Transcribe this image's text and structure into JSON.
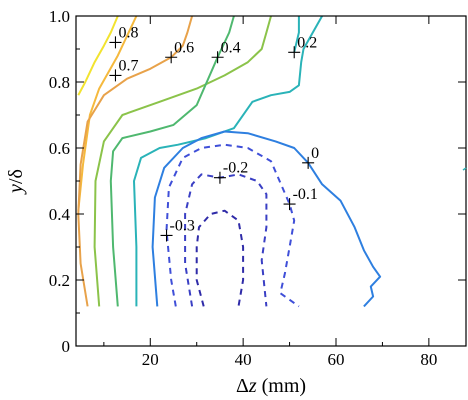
{
  "chart_data": {
    "type": "contour",
    "xlabel_prefix": "Δ",
    "xlabel_var": "z",
    "xlabel_unit": " (mm)",
    "ylabel_var": "y",
    "ylabel_rest": "/δ",
    "xlim": [
      4,
      88
    ],
    "ylim": [
      0,
      1.0
    ],
    "xticks": [
      20,
      40,
      60,
      80
    ],
    "yticks": [
      0,
      0.2,
      0.4,
      0.6,
      0.8,
      1.0
    ],
    "ytick_labels": [
      "0",
      "0.2",
      "0.4",
      "0.6",
      "0.8",
      "1.0"
    ],
    "grid": false,
    "levels": [
      {
        "value": 0.8,
        "label": "0.8",
        "color": "#f2e32f",
        "dashed": false,
        "label_at": [
          12.5,
          0.92
        ],
        "points": [
          [
            4.5,
            0.76
          ],
          [
            6,
            0.8
          ],
          [
            8,
            0.86
          ],
          [
            10,
            0.91
          ],
          [
            11.5,
            0.95
          ],
          [
            13,
            1.0
          ]
        ]
      },
      {
        "value": 0.7,
        "label": "0.7",
        "color": "#f5b93d",
        "dashed": false,
        "label_at": [
          12.5,
          0.82
        ],
        "points": [
          [
            4.5,
            0.41
          ],
          [
            5.5,
            0.55
          ],
          [
            7,
            0.7
          ],
          [
            9,
            0.78
          ],
          [
            11,
            0.83
          ],
          [
            13,
            0.88
          ],
          [
            15,
            0.94
          ],
          [
            17,
            1.0
          ]
        ]
      },
      {
        "value": 0.6,
        "label": "0.6",
        "color": "#e8a24a",
        "dashed": false,
        "label_at": [
          24.5,
          0.875
        ],
        "points": [
          [
            6.5,
            0.12
          ],
          [
            5,
            0.25
          ],
          [
            4.5,
            0.4
          ],
          [
            5,
            0.55
          ],
          [
            6.5,
            0.68
          ],
          [
            10,
            0.76
          ],
          [
            15,
            0.81
          ],
          [
            20,
            0.84
          ],
          [
            24.5,
            0.875
          ],
          [
            27,
            0.91
          ],
          [
            28,
            0.95
          ],
          [
            29,
            1.0
          ]
        ]
      },
      {
        "value": 0.5,
        "label": "",
        "color": "#8bc34a",
        "dashed": false,
        "label_at": null,
        "points": [
          [
            9,
            0.12
          ],
          [
            8,
            0.3
          ],
          [
            8.2,
            0.5
          ],
          [
            10,
            0.62
          ],
          [
            14,
            0.7
          ],
          [
            22,
            0.74
          ],
          [
            30,
            0.78
          ],
          [
            36,
            0.82
          ],
          [
            41,
            0.86
          ],
          [
            44,
            0.9
          ],
          [
            45,
            0.95
          ],
          [
            46,
            1.0
          ]
        ]
      },
      {
        "value": 0.4,
        "label": "0.4",
        "color": "#4fb86f",
        "dashed": false,
        "label_at": [
          34.5,
          0.875
        ],
        "points": [
          [
            13,
            0.12
          ],
          [
            12,
            0.3
          ],
          [
            11.5,
            0.5
          ],
          [
            12,
            0.59
          ],
          [
            14,
            0.63
          ],
          [
            20,
            0.65
          ],
          [
            25,
            0.67
          ],
          [
            30,
            0.73
          ],
          [
            34.5,
            0.875
          ],
          [
            37,
            0.95
          ],
          [
            38,
            1.0
          ]
        ]
      },
      {
        "value": 0.3,
        "label": "",
        "color": "#2ab3b8",
        "dashed": false,
        "label_at": null,
        "points": [
          [
            17,
            0.12
          ],
          [
            17,
            0.3
          ],
          [
            16.5,
            0.5
          ],
          [
            18,
            0.57
          ],
          [
            22,
            0.6
          ],
          [
            26,
            0.61
          ],
          [
            32,
            0.63
          ],
          [
            38,
            0.66
          ],
          [
            42,
            0.74
          ],
          [
            46,
            0.76
          ],
          [
            50,
            0.77
          ],
          [
            52,
            0.79
          ],
          [
            52.5,
            0.86
          ],
          [
            53,
            0.9
          ],
          [
            55,
            0.95
          ],
          [
            57,
            1.0
          ]
        ]
      },
      {
        "value": 0.2,
        "label": "0.2",
        "color": "#2ab3b8",
        "dashed": false,
        "label_at": [
          51,
          0.89
        ],
        "points": [
          [
            51,
            0.89
          ],
          [
            52,
            0.95
          ],
          [
            52,
            1.0
          ]
        ]
      },
      {
        "value": 0,
        "label": "0",
        "color": "#2e7fe0",
        "dashed": false,
        "label_at": [
          54,
          0.555
        ],
        "points": [
          [
            21.5,
            0.12
          ],
          [
            20.5,
            0.3
          ],
          [
            21,
            0.45
          ],
          [
            23,
            0.54
          ],
          [
            27,
            0.6
          ],
          [
            31,
            0.63
          ],
          [
            36,
            0.65
          ],
          [
            41,
            0.645
          ],
          [
            47,
            0.62
          ],
          [
            51,
            0.6
          ],
          [
            54,
            0.555
          ],
          [
            57,
            0.49
          ],
          [
            61,
            0.44
          ],
          [
            64,
            0.36
          ],
          [
            66,
            0.29
          ],
          [
            68,
            0.24
          ],
          [
            69.5,
            0.21
          ],
          [
            67.5,
            0.18
          ],
          [
            68,
            0.15
          ],
          [
            66,
            0.12
          ]
        ]
      },
      {
        "value": -0.1,
        "label": "-0.1",
        "color": "#3f4fd8",
        "dashed": true,
        "label_at": [
          50,
          0.43
        ],
        "points": [
          [
            25.5,
            0.12
          ],
          [
            24.5,
            0.2
          ],
          [
            23.5,
            0.35
          ],
          [
            24,
            0.48
          ],
          [
            27,
            0.57
          ],
          [
            31,
            0.6
          ],
          [
            36,
            0.61
          ],
          [
            41,
            0.6
          ],
          [
            46,
            0.56
          ],
          [
            50,
            0.43
          ],
          [
            51,
            0.38
          ],
          [
            50,
            0.3
          ],
          [
            49,
            0.22
          ],
          [
            48,
            0.16
          ],
          [
            52,
            0.12
          ]
        ]
      },
      {
        "value": -0.2,
        "label": "-0.2",
        "color": "#3a3fc4",
        "dashed": true,
        "label_at": [
          35,
          0.51
        ],
        "points": [
          [
            29,
            0.12
          ],
          [
            27.5,
            0.25
          ],
          [
            27.5,
            0.4
          ],
          [
            29,
            0.49
          ],
          [
            31,
            0.52
          ],
          [
            35,
            0.51
          ],
          [
            39,
            0.52
          ],
          [
            43,
            0.5
          ],
          [
            45,
            0.46
          ],
          [
            45,
            0.36
          ],
          [
            44,
            0.26
          ],
          [
            45,
            0.12
          ]
        ]
      },
      {
        "value": -0.3,
        "label": "-0.3",
        "color": "#2f2ba8",
        "dashed": true,
        "label_at": [
          23.5,
          0.335
        ],
        "points": [
          [
            31.5,
            0.12
          ],
          [
            30,
            0.2
          ],
          [
            30,
            0.3
          ],
          [
            30.5,
            0.36
          ],
          [
            33,
            0.4
          ],
          [
            36,
            0.41
          ],
          [
            39,
            0.38
          ],
          [
            40,
            0.3
          ],
          [
            40,
            0.2
          ],
          [
            39,
            0.12
          ]
        ]
      }
    ],
    "extra_tick": {
      "x": 88,
      "y": 0.2
    }
  }
}
